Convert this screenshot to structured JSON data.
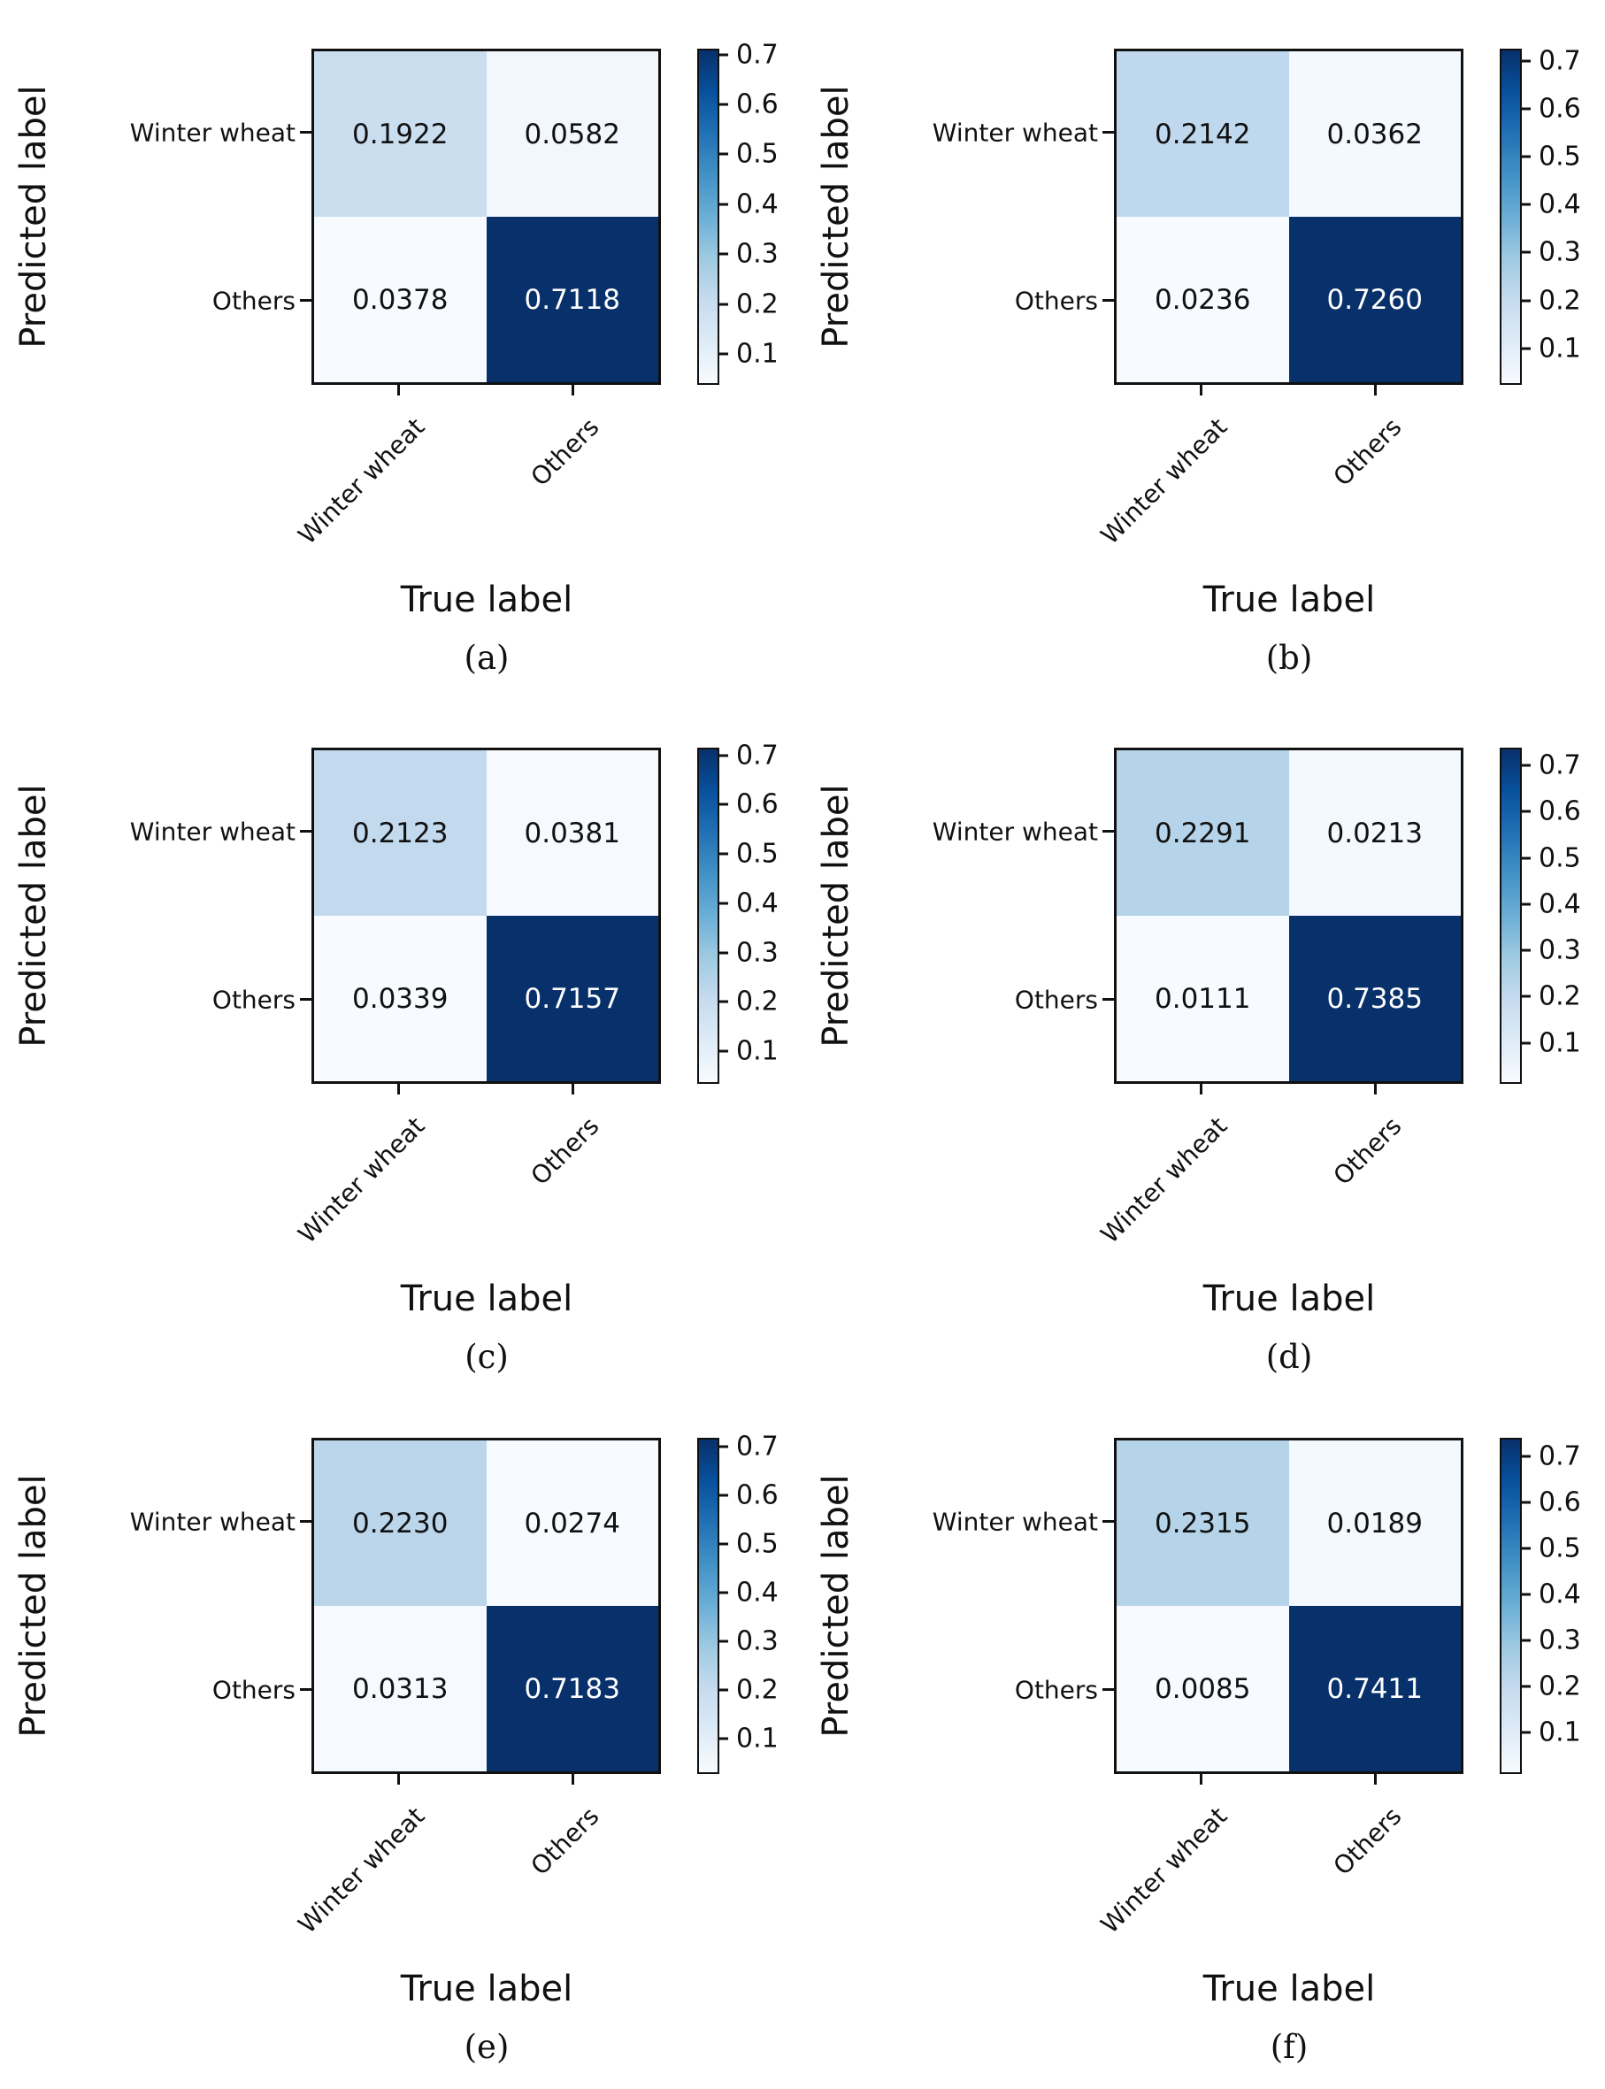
{
  "figure_type": "confusion-matrix-grid",
  "colormap": {
    "name": "Blues",
    "stops": [
      "#f7fbff",
      "#deebf7",
      "#c6dbef",
      "#9ecae1",
      "#6baed6",
      "#4292c6",
      "#2171b5",
      "#08519c",
      "#08306b"
    ]
  },
  "text_colors": {
    "dark": "#111111",
    "light": "#ffffff"
  },
  "chart_data": [
    {
      "type": "heatmap",
      "caption": "(a)",
      "xlabel": "True label",
      "ylabel": "Predicted label",
      "x_categories": [
        "Winter wheat",
        "Others"
      ],
      "y_categories": [
        "Winter wheat",
        "Others"
      ],
      "values": [
        [
          0.1922,
          0.0582
        ],
        [
          0.0378,
          0.7118
        ]
      ],
      "value_labels": [
        [
          "0.1922",
          "0.0582"
        ],
        [
          "0.0378",
          "0.7118"
        ]
      ],
      "colorbar_ticks": [
        0.7,
        0.6,
        0.5,
        0.4,
        0.3,
        0.2,
        0.1
      ],
      "colorbar_tick_labels": [
        "0.7",
        "0.6",
        "0.5",
        "0.4",
        "0.3",
        "0.2",
        "0.1"
      ]
    },
    {
      "type": "heatmap",
      "caption": "(b)",
      "xlabel": "True label",
      "ylabel": "Predicted label",
      "x_categories": [
        "Winter wheat",
        "Others"
      ],
      "y_categories": [
        "Winter wheat",
        "Others"
      ],
      "values": [
        [
          0.2142,
          0.0362
        ],
        [
          0.0236,
          0.726
        ]
      ],
      "value_labels": [
        [
          "0.2142",
          "0.0362"
        ],
        [
          "0.0236",
          "0.7260"
        ]
      ],
      "colorbar_ticks": [
        0.7,
        0.6,
        0.5,
        0.4,
        0.3,
        0.2,
        0.1
      ],
      "colorbar_tick_labels": [
        "0.7",
        "0.6",
        "0.5",
        "0.4",
        "0.3",
        "0.2",
        "0.1"
      ]
    },
    {
      "type": "heatmap",
      "caption": "(c)",
      "xlabel": "True label",
      "ylabel": "Predicted label",
      "x_categories": [
        "Winter wheat",
        "Others"
      ],
      "y_categories": [
        "Winter wheat",
        "Others"
      ],
      "values": [
        [
          0.2123,
          0.0381
        ],
        [
          0.0339,
          0.7157
        ]
      ],
      "value_labels": [
        [
          "0.2123",
          "0.0381"
        ],
        [
          "0.0339",
          "0.7157"
        ]
      ],
      "colorbar_ticks": [
        0.7,
        0.6,
        0.5,
        0.4,
        0.3,
        0.2,
        0.1
      ],
      "colorbar_tick_labels": [
        "0.7",
        "0.6",
        "0.5",
        "0.4",
        "0.3",
        "0.2",
        "0.1"
      ]
    },
    {
      "type": "heatmap",
      "caption": "(d)",
      "xlabel": "True label",
      "ylabel": "Predicted label",
      "x_categories": [
        "Winter wheat",
        "Others"
      ],
      "y_categories": [
        "Winter wheat",
        "Others"
      ],
      "values": [
        [
          0.2291,
          0.0213
        ],
        [
          0.0111,
          0.7385
        ]
      ],
      "value_labels": [
        [
          "0.2291",
          "0.0213"
        ],
        [
          "0.0111",
          "0.7385"
        ]
      ],
      "colorbar_ticks": [
        0.7,
        0.6,
        0.5,
        0.4,
        0.3,
        0.2,
        0.1
      ],
      "colorbar_tick_labels": [
        "0.7",
        "0.6",
        "0.5",
        "0.4",
        "0.3",
        "0.2",
        "0.1"
      ]
    },
    {
      "type": "heatmap",
      "caption": "(e)",
      "xlabel": "True label",
      "ylabel": "Predicted label",
      "x_categories": [
        "Winter wheat",
        "Others"
      ],
      "y_categories": [
        "Winter wheat",
        "Others"
      ],
      "values": [
        [
          0.223,
          0.0274
        ],
        [
          0.0313,
          0.7183
        ]
      ],
      "value_labels": [
        [
          "0.2230",
          "0.0274"
        ],
        [
          "0.0313",
          "0.7183"
        ]
      ],
      "colorbar_ticks": [
        0.7,
        0.6,
        0.5,
        0.4,
        0.3,
        0.2,
        0.1
      ],
      "colorbar_tick_labels": [
        "0.7",
        "0.6",
        "0.5",
        "0.4",
        "0.3",
        "0.2",
        "0.1"
      ]
    },
    {
      "type": "heatmap",
      "caption": "(f)",
      "xlabel": "True label",
      "ylabel": "Predicted label",
      "x_categories": [
        "Winter wheat",
        "Others"
      ],
      "y_categories": [
        "Winter wheat",
        "Others"
      ],
      "values": [
        [
          0.2315,
          0.0189
        ],
        [
          0.0085,
          0.7411
        ]
      ],
      "value_labels": [
        [
          "0.2315",
          "0.0189"
        ],
        [
          "0.0085",
          "0.7411"
        ]
      ],
      "colorbar_ticks": [
        0.7,
        0.6,
        0.5,
        0.4,
        0.3,
        0.2,
        0.1
      ],
      "colorbar_tick_labels": [
        "0.7",
        "0.6",
        "0.5",
        "0.4",
        "0.3",
        "0.2",
        "0.1"
      ]
    }
  ]
}
